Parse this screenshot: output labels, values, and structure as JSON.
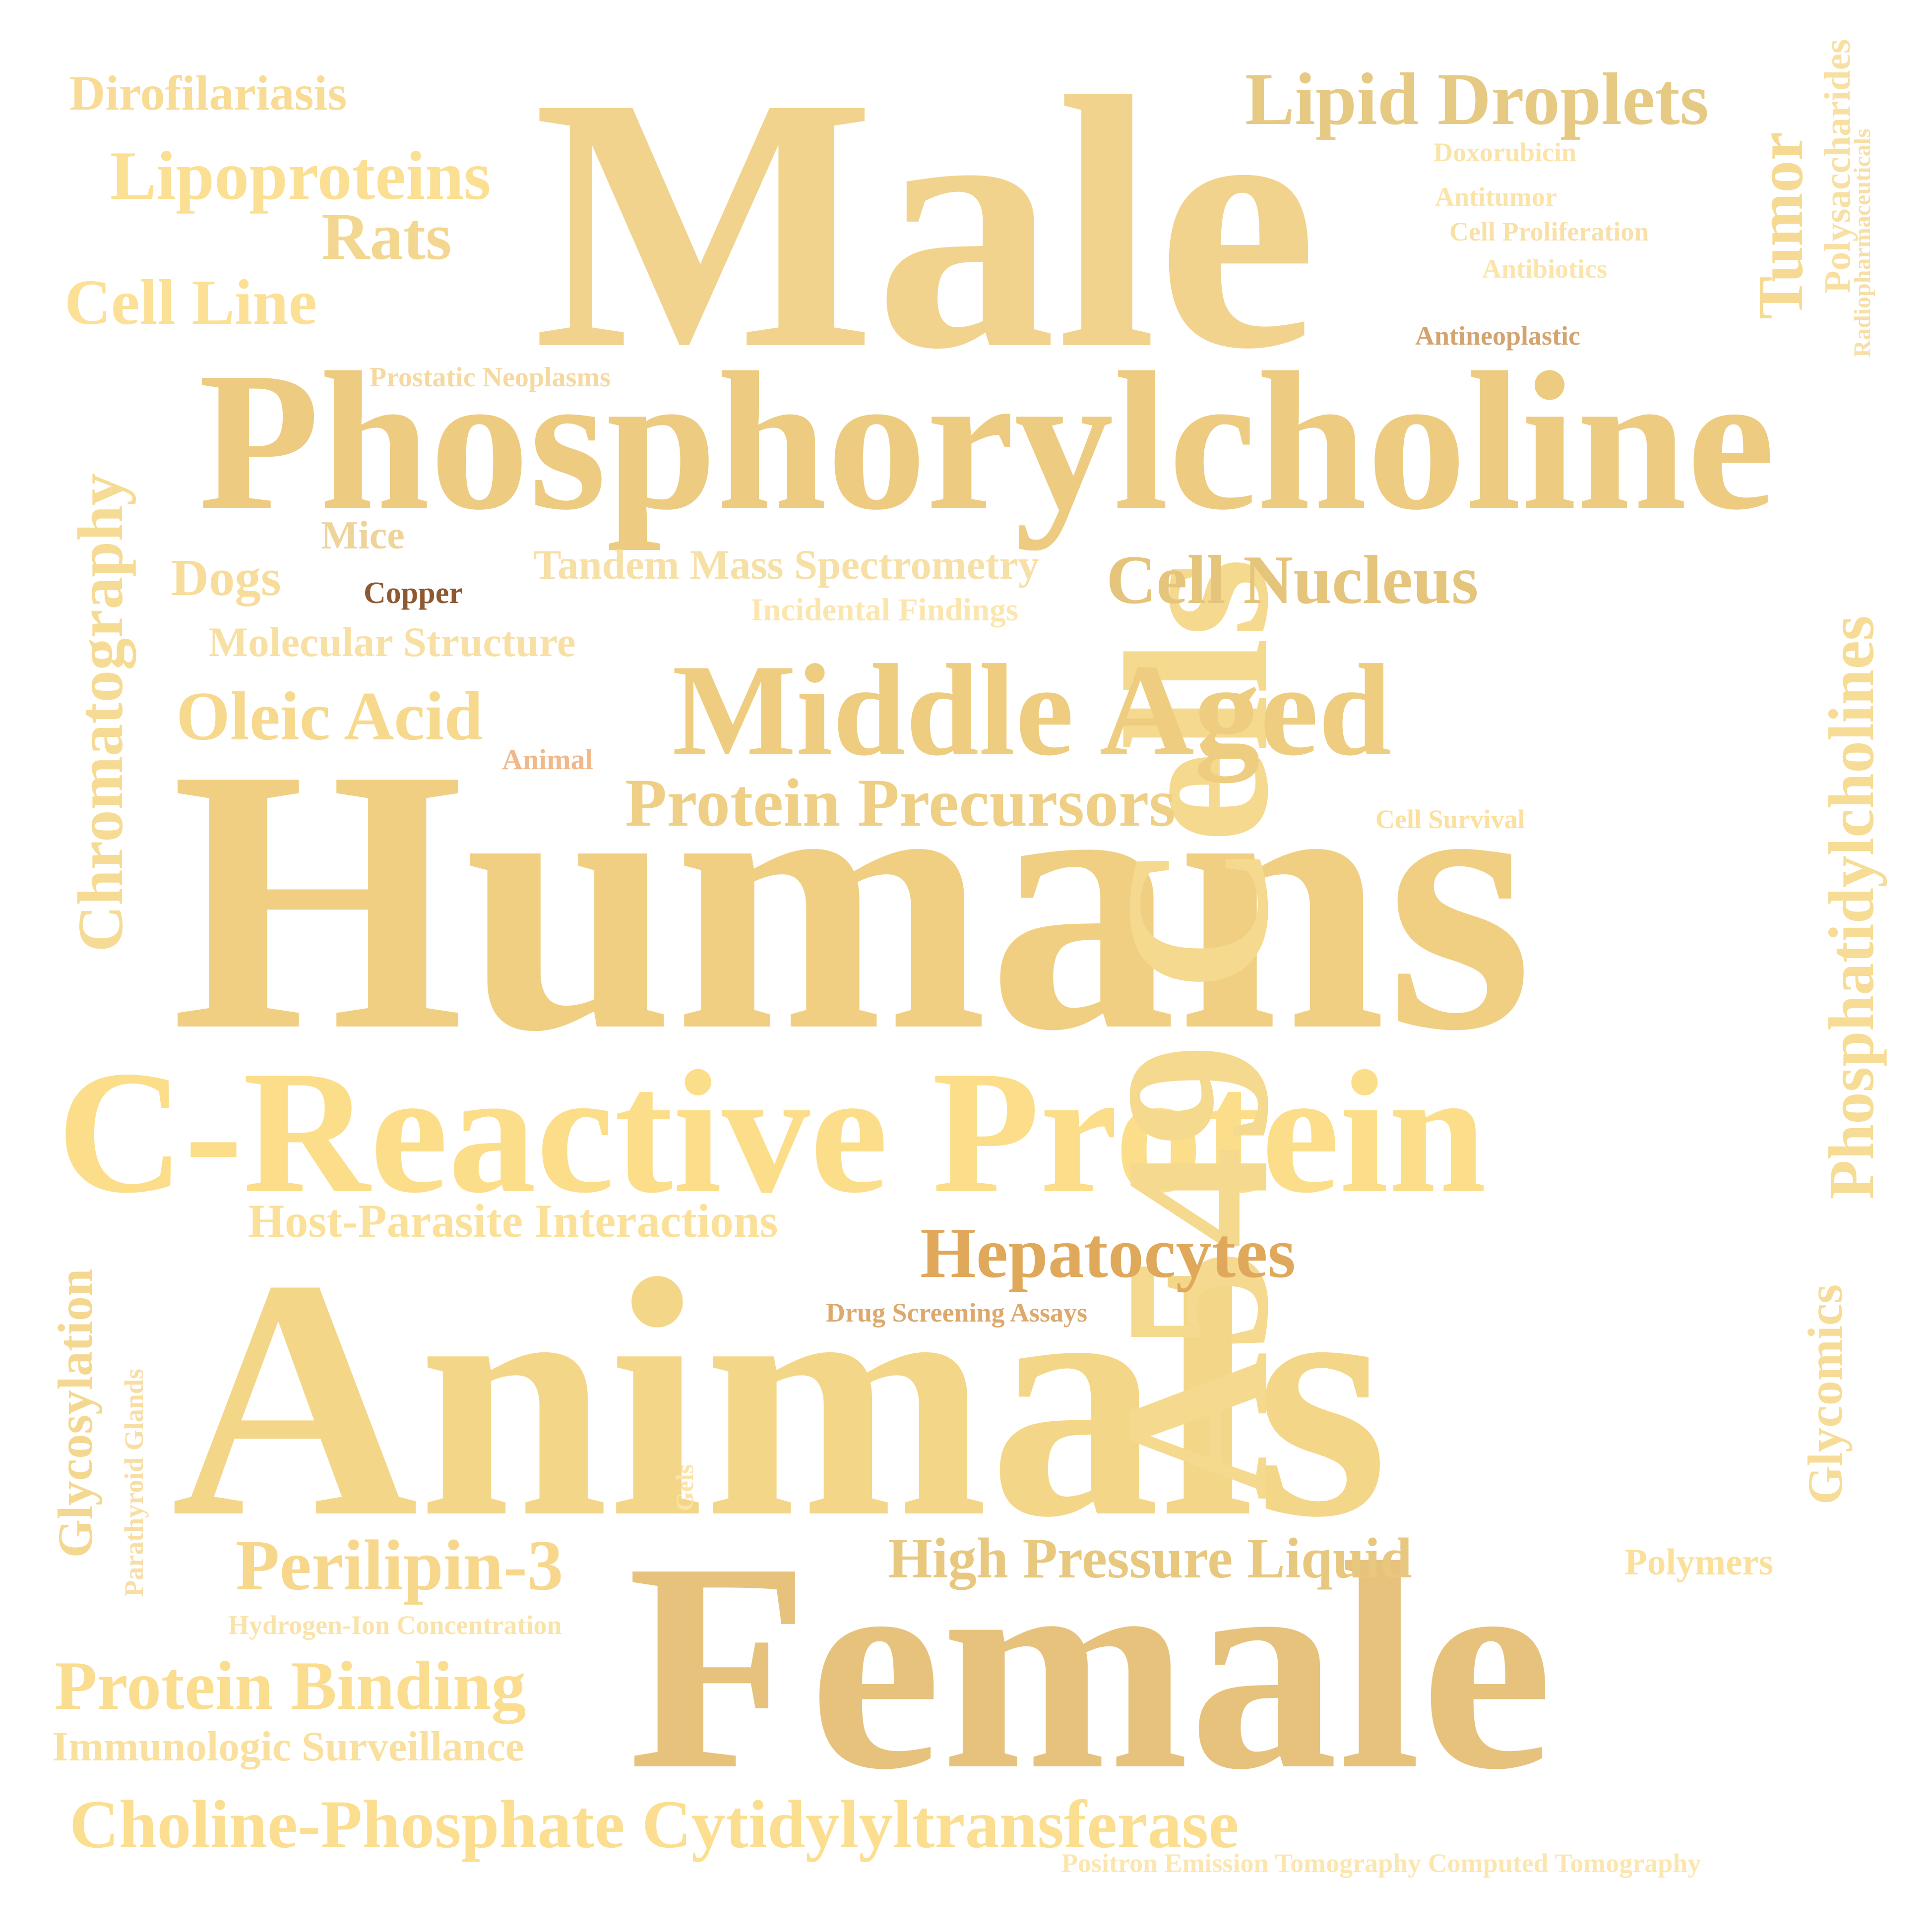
{
  "words": [
    {
      "text": "Humans",
      "color": "#F0CF82"
    },
    {
      "text": "Animals",
      "color": "#F3D687"
    },
    {
      "text": "Male",
      "color": "#F1D38D"
    },
    {
      "text": "Female",
      "color": "#E6C27C"
    },
    {
      "text": "Phosphorylcholine",
      "color": "#EDCB80"
    },
    {
      "text": "C-Reactive Protein",
      "color": "#FCDE8A"
    },
    {
      "text": "A549 Cells",
      "color": "#F5D98E"
    },
    {
      "text": "Middle Aged",
      "color": "#EECD80"
    },
    {
      "text": "Phosphatidylcholines",
      "color": "#F6DC95"
    },
    {
      "text": "Lipid Droplets",
      "color": "#E6C983"
    },
    {
      "text": "Chromatography",
      "color": "#F6DB95"
    },
    {
      "text": "Hepatocytes",
      "color": "#DFA85A"
    },
    {
      "text": "Cell Nucleus",
      "color": "#E5C47B"
    },
    {
      "text": "Protein Precursors",
      "color": "#EFCF86"
    },
    {
      "text": "Choline-Phosphate Cytidylyltransferase",
      "color": "#FBDE8F"
    },
    {
      "text": "Perilipin-3",
      "color": "#F7D78C"
    },
    {
      "text": "Protein Binding",
      "color": "#FADD8F"
    },
    {
      "text": "High Pressure Liquid",
      "color": "#E8C77F"
    },
    {
      "text": "Oleic Acid",
      "color": "#F7D98D"
    },
    {
      "text": "Lipoproteins",
      "color": "#FBDF93"
    },
    {
      "text": "Rats",
      "color": "#F3D68F"
    },
    {
      "text": "Cell Line",
      "color": "#FBE095"
    },
    {
      "text": "Dirofilariasis",
      "color": "#F8DC95"
    },
    {
      "text": "Tumor",
      "color": "#F6DA93"
    },
    {
      "text": "Glycosylation",
      "color": "#F4D891"
    },
    {
      "text": "Glycomics",
      "color": "#F7DC98"
    },
    {
      "text": "Host-Parasite Interactions",
      "color": "#FBE09A"
    },
    {
      "text": "Immunologic Surveillance",
      "color": "#FAE09E"
    },
    {
      "text": "Tandem Mass Spectrometry",
      "color": "#F7E0A6"
    },
    {
      "text": "Molecular Structure",
      "color": "#F8E0A5"
    },
    {
      "text": "Dogs",
      "color": "#F8DC9A"
    },
    {
      "text": "Mice",
      "color": "#EED39A"
    },
    {
      "text": "Polysaccharides",
      "color": "#F8E0A2"
    },
    {
      "text": "Polymers",
      "color": "#FBE09A"
    },
    {
      "text": "Incidental Findings",
      "color": "#FCE6B0"
    },
    {
      "text": "Positron Emission Tomography Computed Tomography",
      "color": "#FCE6B0"
    },
    {
      "text": "Prostatic Neoplasms",
      "color": "#F5D9A1"
    },
    {
      "text": "Copper",
      "color": "#8E5932"
    },
    {
      "text": "Animal",
      "color": "#F1B88A"
    },
    {
      "text": "Cell Survival",
      "color": "#FBE09E"
    },
    {
      "text": "Drug Screening Assays",
      "color": "#DDA96D"
    },
    {
      "text": "Doxorubicin",
      "color": "#FBE4AA"
    },
    {
      "text": "Antitumor",
      "color": "#FBE4AA"
    },
    {
      "text": "Cell Proliferation",
      "color": "#F8E1A8"
    },
    {
      "text": "Antibiotics",
      "color": "#FCE4AA"
    },
    {
      "text": "Antineoplastic",
      "color": "#D3A470"
    },
    {
      "text": "Radiopharmaceuticals",
      "color": "#F7DFA8"
    },
    {
      "text": "Parathyroid Glands",
      "color": "#F8DEA3"
    },
    {
      "text": "Hydrogen-Ion Concentration",
      "color": "#FAE3AA"
    },
    {
      "text": "Gels",
      "color": "#FBE3AA"
    }
  ]
}
